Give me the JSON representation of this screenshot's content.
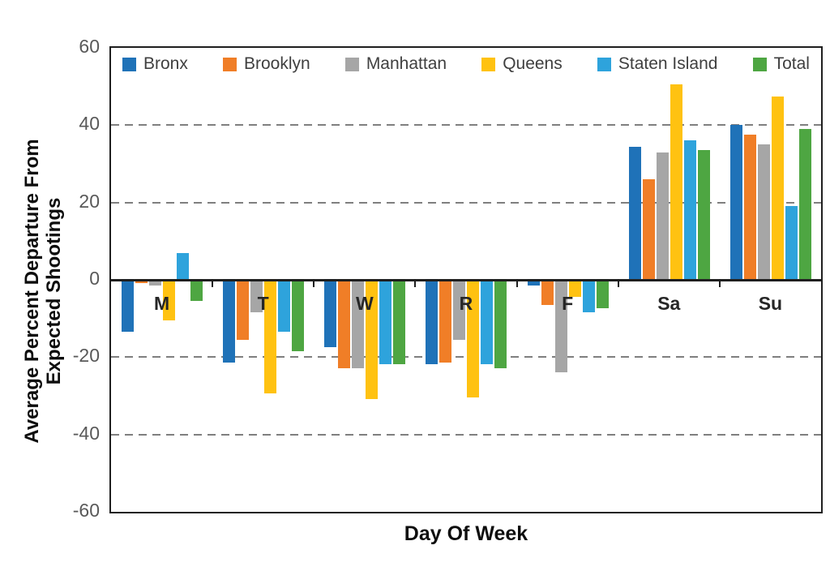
{
  "chart_data": {
    "type": "bar",
    "xlabel": "Day Of Week",
    "ylabel": "Average Percent Departure From Expected Shootings",
    "ylabel_lines": [
      "Average Percent Departure From",
      "Expected Shootings"
    ],
    "categories": [
      "M",
      "T",
      "W",
      "R",
      "F",
      "Sa",
      "Su"
    ],
    "series": [
      {
        "name": "Bronx",
        "color": "#1F72B8",
        "values": [
          -13,
          -21,
          -17,
          -21.5,
          -1,
          34.5,
          40
        ]
      },
      {
        "name": "Brooklyn",
        "color": "#F07E27",
        "values": [
          -0.5,
          -15,
          -22.5,
          -21,
          -6,
          26,
          37.5
        ]
      },
      {
        "name": "Manhattan",
        "color": "#A6A6A6",
        "values": [
          -1,
          -8,
          -22.5,
          -15,
          -23.5,
          33,
          35
        ]
      },
      {
        "name": "Queens",
        "color": "#FFC211",
        "values": [
          -10,
          -29,
          -30.5,
          -30,
          -4,
          50.5,
          47.5
        ]
      },
      {
        "name": "Staten Island",
        "color": "#2EA3DC",
        "values": [
          7,
          -13,
          -21.5,
          -21.5,
          -8,
          36,
          19
        ]
      },
      {
        "name": "Total",
        "color": "#4EA642",
        "values": [
          -5,
          -18,
          -21.5,
          -22.5,
          -7,
          33.5,
          39
        ]
      }
    ],
    "y_ticks": [
      60,
      40,
      20,
      0,
      -20,
      -40,
      -60
    ],
    "ylim": [
      -60,
      60
    ],
    "dashed_gridlines_at": [
      40,
      20,
      -20,
      -40
    ],
    "gridline_color": "#7f7f7f",
    "axis_color": "#1f1f1f",
    "tick_label_color": "#595959",
    "legend_position": "top",
    "grid": "horizontal-dashed"
  }
}
